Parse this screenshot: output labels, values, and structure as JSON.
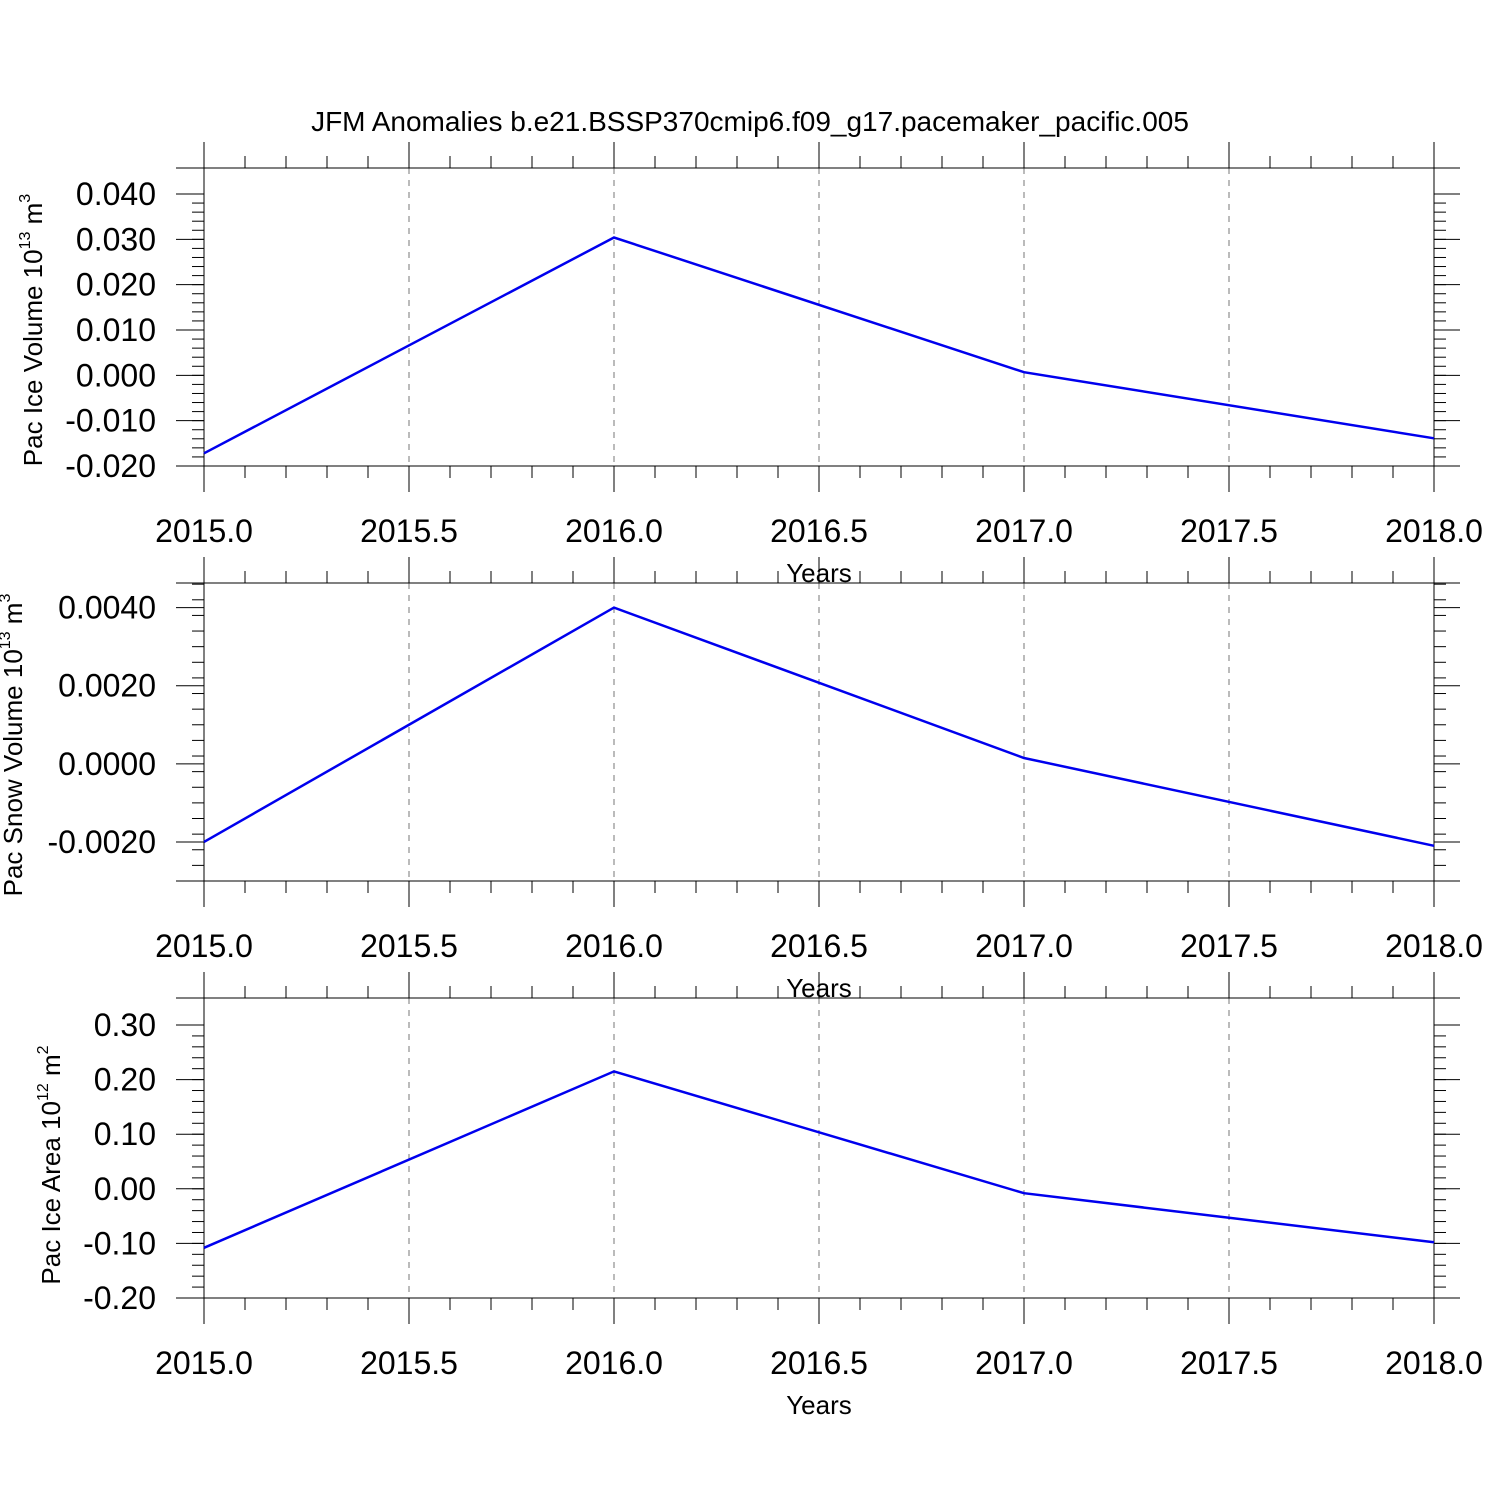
{
  "title": "JFM Anomalies b.e21.BSSP370cmip6.f09_g17.pacemaker_pacific.005",
  "chart_data": [
    {
      "type": "line",
      "id": "ice-volume",
      "ylabel_parts": [
        "Pac Ice Volume 10",
        "13",
        " m",
        "3"
      ],
      "xlabel": "Years",
      "x": [
        2015,
        2016,
        2017,
        2018
      ],
      "series": [
        {
          "color": "#0000ee",
          "values": [
            -0.0172,
            0.0304,
            0.0007,
            -0.0139
          ]
        }
      ],
      "xlim": [
        2015.0,
        2018.0
      ],
      "ylim": [
        -0.02,
        0.04
      ],
      "xticks": [
        2015.0,
        2015.5,
        2016.0,
        2016.5,
        2017.0,
        2017.5,
        2018.0
      ],
      "xtick_labels": [
        "2015.0",
        "2015.5",
        "2016.0",
        "2016.5",
        "2017.0",
        "2017.5",
        "2018.0"
      ],
      "yticks": [
        -0.02,
        -0.01,
        0.0,
        0.01,
        0.02,
        0.03,
        0.04
      ],
      "ytick_labels": [
        "-0.020",
        "-0.010",
        "0.000",
        "0.010",
        "0.020",
        "0.030",
        "0.040"
      ],
      "yminor_step": 0.002,
      "vgrid": [
        2015.5,
        2016.0,
        2016.5,
        2017.0,
        2017.5
      ]
    },
    {
      "type": "line",
      "id": "snow-volume",
      "ylabel_parts": [
        "Pac Snow Volume 10",
        "13",
        " m",
        "3"
      ],
      "xlabel": "Years",
      "x": [
        2015,
        2016,
        2017,
        2018
      ],
      "series": [
        {
          "color": "#0000ee",
          "values": [
            -0.002,
            0.004,
            0.00015,
            -0.0021
          ]
        }
      ],
      "xlim": [
        2015.0,
        2018.0
      ],
      "ylim": [
        -0.003,
        0.0046
      ],
      "xticks": [
        2015.0,
        2015.5,
        2016.0,
        2016.5,
        2017.0,
        2017.5,
        2018.0
      ],
      "xtick_labels": [
        "2015.0",
        "2015.5",
        "2016.0",
        "2016.5",
        "2017.0",
        "2017.5",
        "2018.0"
      ],
      "yticks": [
        -0.002,
        0.0,
        0.002,
        0.004
      ],
      "ytick_labels": [
        "-0.0020",
        "0.0000",
        "0.0020",
        "0.0040"
      ],
      "yminor_step": 0.0004,
      "vgrid": [
        2015.5,
        2016.0,
        2016.5,
        2017.0,
        2017.5
      ]
    },
    {
      "type": "line",
      "id": "ice-area",
      "ylabel_parts": [
        "Pac Ice Area 10",
        "12",
        " m",
        "2"
      ],
      "xlabel": "Years",
      "x": [
        2015,
        2016,
        2017,
        2018
      ],
      "series": [
        {
          "color": "#0000ee",
          "values": [
            -0.108,
            0.215,
            -0.008,
            -0.098
          ]
        }
      ],
      "xlim": [
        2015.0,
        2018.0
      ],
      "ylim": [
        -0.2,
        0.3
      ],
      "xticks": [
        2015.0,
        2015.5,
        2016.0,
        2016.5,
        2017.0,
        2017.5,
        2018.0
      ],
      "xtick_labels": [
        "2015.0",
        "2015.5",
        "2016.0",
        "2016.5",
        "2017.0",
        "2017.5",
        "2018.0"
      ],
      "yticks": [
        -0.2,
        -0.1,
        0.0,
        0.1,
        0.2,
        0.3
      ],
      "ytick_labels": [
        "-0.20",
        "-0.10",
        "0.00",
        "0.10",
        "0.20",
        "0.30"
      ],
      "yminor_step": 0.02,
      "vgrid": [
        2015.5,
        2016.0,
        2016.5,
        2017.0,
        2017.5
      ]
    }
  ]
}
